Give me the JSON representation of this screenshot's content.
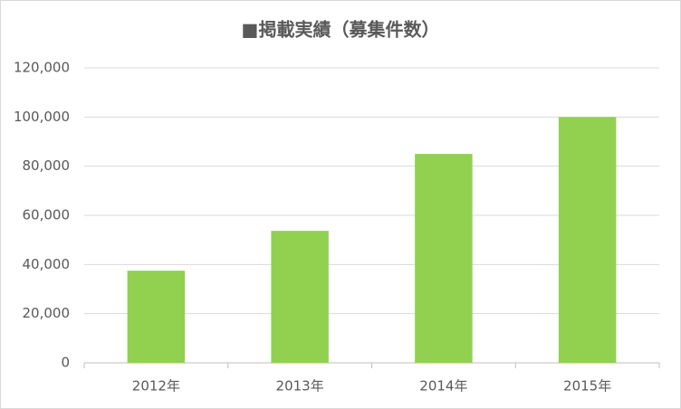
{
  "chart_data": {
    "type": "bar",
    "title": "■掲載実績（募集件数）",
    "categories": [
      "2012年",
      "2013年",
      "2014年",
      "2015年"
    ],
    "values": [
      37500,
      53700,
      85000,
      100000
    ],
    "color": "#92d050",
    "ylim": [
      0,
      120000
    ],
    "yticks": [
      0,
      {
        "value": 20000,
        "label": "20,000"
      },
      {
        "value": 40000,
        "label": "40,000"
      },
      {
        "value": 60000,
        "label": "60,000"
      },
      {
        "value": 80000,
        "label": "80,000"
      },
      {
        "value": 100000,
        "label": "100,000"
      },
      {
        "value": 120000,
        "label": "120,000"
      }
    ],
    "grid": true
  }
}
